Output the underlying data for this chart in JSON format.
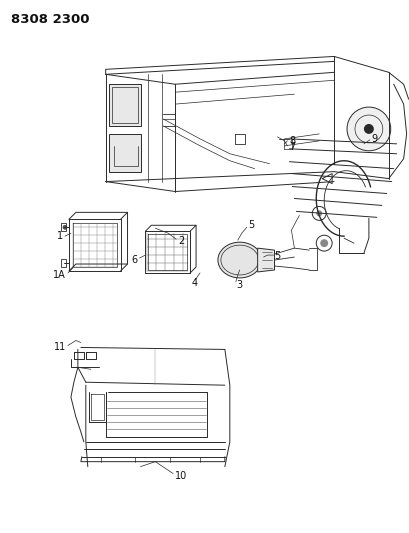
{
  "title": "8308 2300",
  "background_color": "#ffffff",
  "line_color": "#2a2a2a",
  "label_color": "#111111",
  "label_fontsize": 7.0,
  "title_fontsize": 9.5,
  "fig_width": 4.1,
  "fig_height": 5.33,
  "dpi": 100
}
